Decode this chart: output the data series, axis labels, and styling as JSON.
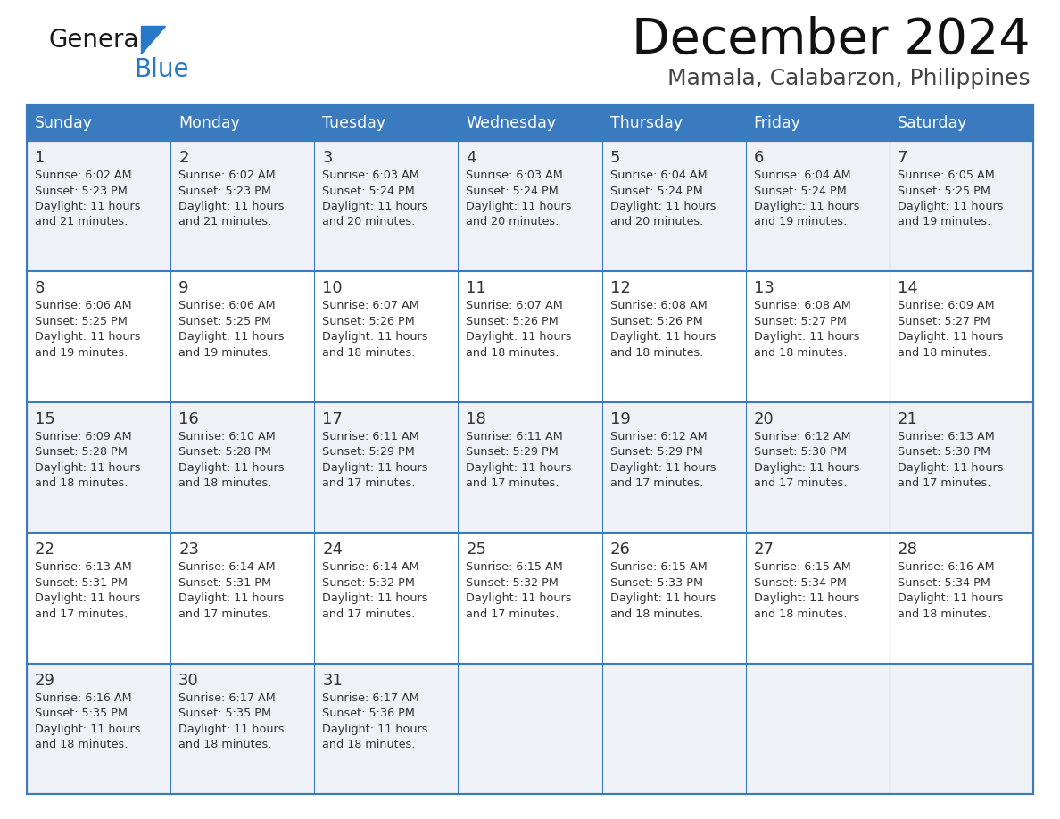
{
  "title": "December 2024",
  "subtitle": "Mamala, Calabarzon, Philippines",
  "days_of_week": [
    "Sunday",
    "Monday",
    "Tuesday",
    "Wednesday",
    "Thursday",
    "Friday",
    "Saturday"
  ],
  "header_bg": "#3a7abf",
  "header_text": "#ffffff",
  "row_bg_odd": "#eef2f7",
  "row_bg_even": "#ffffff",
  "border_color": "#3a7abf",
  "text_color": "#333333",
  "calendar_data": [
    [
      {
        "day": 1,
        "sunrise": "6:02 AM",
        "sunset": "5:23 PM",
        "daylight": "11 hours and 21 minutes"
      },
      {
        "day": 2,
        "sunrise": "6:02 AM",
        "sunset": "5:23 PM",
        "daylight": "11 hours and 21 minutes"
      },
      {
        "day": 3,
        "sunrise": "6:03 AM",
        "sunset": "5:24 PM",
        "daylight": "11 hours and 20 minutes"
      },
      {
        "day": 4,
        "sunrise": "6:03 AM",
        "sunset": "5:24 PM",
        "daylight": "11 hours and 20 minutes"
      },
      {
        "day": 5,
        "sunrise": "6:04 AM",
        "sunset": "5:24 PM",
        "daylight": "11 hours and 20 minutes"
      },
      {
        "day": 6,
        "sunrise": "6:04 AM",
        "sunset": "5:24 PM",
        "daylight": "11 hours and 19 minutes"
      },
      {
        "day": 7,
        "sunrise": "6:05 AM",
        "sunset": "5:25 PM",
        "daylight": "11 hours and 19 minutes"
      }
    ],
    [
      {
        "day": 8,
        "sunrise": "6:06 AM",
        "sunset": "5:25 PM",
        "daylight": "11 hours and 19 minutes"
      },
      {
        "day": 9,
        "sunrise": "6:06 AM",
        "sunset": "5:25 PM",
        "daylight": "11 hours and 19 minutes"
      },
      {
        "day": 10,
        "sunrise": "6:07 AM",
        "sunset": "5:26 PM",
        "daylight": "11 hours and 18 minutes"
      },
      {
        "day": 11,
        "sunrise": "6:07 AM",
        "sunset": "5:26 PM",
        "daylight": "11 hours and 18 minutes"
      },
      {
        "day": 12,
        "sunrise": "6:08 AM",
        "sunset": "5:26 PM",
        "daylight": "11 hours and 18 minutes"
      },
      {
        "day": 13,
        "sunrise": "6:08 AM",
        "sunset": "5:27 PM",
        "daylight": "11 hours and 18 minutes"
      },
      {
        "day": 14,
        "sunrise": "6:09 AM",
        "sunset": "5:27 PM",
        "daylight": "11 hours and 18 minutes"
      }
    ],
    [
      {
        "day": 15,
        "sunrise": "6:09 AM",
        "sunset": "5:28 PM",
        "daylight": "11 hours and 18 minutes"
      },
      {
        "day": 16,
        "sunrise": "6:10 AM",
        "sunset": "5:28 PM",
        "daylight": "11 hours and 18 minutes"
      },
      {
        "day": 17,
        "sunrise": "6:11 AM",
        "sunset": "5:29 PM",
        "daylight": "11 hours and 17 minutes"
      },
      {
        "day": 18,
        "sunrise": "6:11 AM",
        "sunset": "5:29 PM",
        "daylight": "11 hours and 17 minutes"
      },
      {
        "day": 19,
        "sunrise": "6:12 AM",
        "sunset": "5:29 PM",
        "daylight": "11 hours and 17 minutes"
      },
      {
        "day": 20,
        "sunrise": "6:12 AM",
        "sunset": "5:30 PM",
        "daylight": "11 hours and 17 minutes"
      },
      {
        "day": 21,
        "sunrise": "6:13 AM",
        "sunset": "5:30 PM",
        "daylight": "11 hours and 17 minutes"
      }
    ],
    [
      {
        "day": 22,
        "sunrise": "6:13 AM",
        "sunset": "5:31 PM",
        "daylight": "11 hours and 17 minutes"
      },
      {
        "day": 23,
        "sunrise": "6:14 AM",
        "sunset": "5:31 PM",
        "daylight": "11 hours and 17 minutes"
      },
      {
        "day": 24,
        "sunrise": "6:14 AM",
        "sunset": "5:32 PM",
        "daylight": "11 hours and 17 minutes"
      },
      {
        "day": 25,
        "sunrise": "6:15 AM",
        "sunset": "5:32 PM",
        "daylight": "11 hours and 17 minutes"
      },
      {
        "day": 26,
        "sunrise": "6:15 AM",
        "sunset": "5:33 PM",
        "daylight": "11 hours and 18 minutes"
      },
      {
        "day": 27,
        "sunrise": "6:15 AM",
        "sunset": "5:34 PM",
        "daylight": "11 hours and 18 minutes"
      },
      {
        "day": 28,
        "sunrise": "6:16 AM",
        "sunset": "5:34 PM",
        "daylight": "11 hours and 18 minutes"
      }
    ],
    [
      {
        "day": 29,
        "sunrise": "6:16 AM",
        "sunset": "5:35 PM",
        "daylight": "11 hours and 18 minutes"
      },
      {
        "day": 30,
        "sunrise": "6:17 AM",
        "sunset": "5:35 PM",
        "daylight": "11 hours and 18 minutes"
      },
      {
        "day": 31,
        "sunrise": "6:17 AM",
        "sunset": "5:36 PM",
        "daylight": "11 hours and 18 minutes"
      },
      null,
      null,
      null,
      null
    ]
  ],
  "logo_color_general": "#1a1a1a",
  "logo_color_blue": "#2878c8",
  "logo_color_triangle": "#2878c8"
}
